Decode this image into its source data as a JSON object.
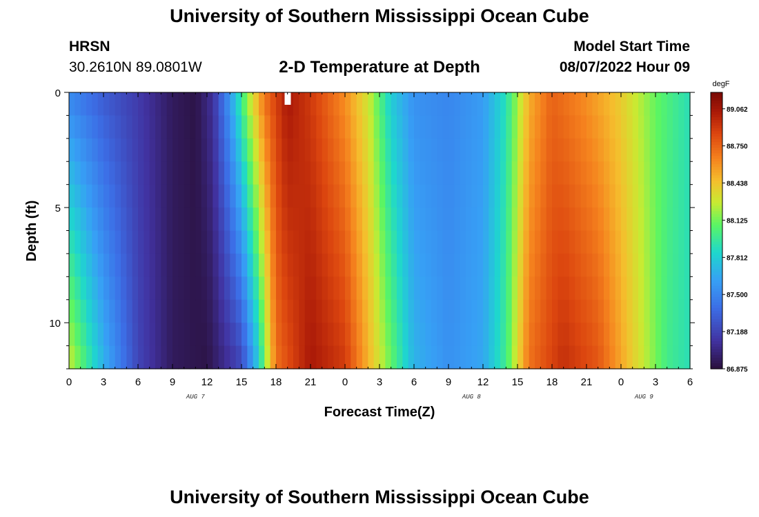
{
  "header": {
    "title": "University of Southern Mississippi Ocean Cube",
    "station": "HRSN",
    "coords": "30.2610N  89.0801W",
    "plot_title": "2-D Temperature at Depth",
    "model_start_label": "Model Start Time",
    "model_start_value": "08/07/2022 Hour 09"
  },
  "footer": {
    "title": "University of Southern Mississippi Ocean Cube"
  },
  "chart_data": {
    "type": "heatmap",
    "xlabel": "Forecast Time(Z)",
    "ylabel": "Depth (ft)",
    "x_tick_labels": [
      "0",
      "3",
      "6",
      "9",
      "12",
      "15",
      "18",
      "21",
      "0",
      "3",
      "6",
      "9",
      "12",
      "15",
      "18",
      "21",
      "0",
      "3",
      "6"
    ],
    "date_labels": [
      {
        "text": "AUG 7",
        "hour": 11
      },
      {
        "text": "AUG 8",
        "hour": 35
      },
      {
        "text": "AUG 9",
        "hour": 50
      }
    ],
    "x_range_hours": [
      0,
      54
    ],
    "y_range_ft": [
      0,
      12
    ],
    "y_tick_labels": [
      {
        "value": 0,
        "label": "0"
      },
      {
        "value": 5,
        "label": "5"
      },
      {
        "value": 10,
        "label": "10"
      }
    ],
    "colorbar": {
      "unit": "degF",
      "min": 86.875,
      "max": 89.2,
      "labels": [
        "89.062",
        "88.750",
        "88.438",
        "88.125",
        "87.812",
        "87.500",
        "87.188",
        "86.875"
      ]
    },
    "surface_temperature_keyframes": [
      {
        "hour": 0,
        "degF": 87.5
      },
      {
        "hour": 3,
        "degF": 87.3
      },
      {
        "hour": 6,
        "degF": 87.15
      },
      {
        "hour": 9,
        "degF": 86.95
      },
      {
        "hour": 11,
        "degF": 86.9
      },
      {
        "hour": 12.5,
        "degF": 87.1
      },
      {
        "hour": 14,
        "degF": 87.6
      },
      {
        "hour": 15.5,
        "degF": 88.2
      },
      {
        "hour": 17,
        "degF": 88.7
      },
      {
        "hour": 19,
        "degF": 89.05
      },
      {
        "hour": 21,
        "degF": 88.9
      },
      {
        "hour": 24,
        "degF": 88.6
      },
      {
        "hour": 26,
        "degF": 88.3
      },
      {
        "hour": 28,
        "degF": 87.8
      },
      {
        "hour": 30,
        "degF": 87.55
      },
      {
        "hour": 33,
        "degF": 87.5
      },
      {
        "hour": 36,
        "degF": 87.6
      },
      {
        "hour": 38,
        "degF": 87.9
      },
      {
        "hour": 40,
        "degF": 88.5
      },
      {
        "hour": 42,
        "degF": 88.75
      },
      {
        "hour": 45,
        "degF": 88.6
      },
      {
        "hour": 48,
        "degF": 88.4
      },
      {
        "hour": 51,
        "degF": 88.1
      },
      {
        "hour": 54,
        "degF": 87.9
      }
    ],
    "bottom_temperature_keyframes": [
      {
        "hour": 0,
        "degF": 88.3
      },
      {
        "hour": 3,
        "degF": 87.7
      },
      {
        "hour": 6,
        "degF": 87.2
      },
      {
        "hour": 9,
        "degF": 86.95
      },
      {
        "hour": 12,
        "degF": 86.9
      },
      {
        "hour": 15,
        "degF": 87.2
      },
      {
        "hour": 16.5,
        "degF": 87.8
      },
      {
        "hour": 18,
        "degF": 88.7
      },
      {
        "hour": 21,
        "degF": 89.05
      },
      {
        "hour": 24,
        "degF": 88.9
      },
      {
        "hour": 26,
        "degF": 88.5
      },
      {
        "hour": 28,
        "degF": 88.1
      },
      {
        "hour": 30,
        "degF": 87.7
      },
      {
        "hour": 33,
        "degF": 87.55
      },
      {
        "hour": 36,
        "degF": 87.65
      },
      {
        "hour": 38,
        "degF": 88.0
      },
      {
        "hour": 40,
        "degF": 88.7
      },
      {
        "hour": 43,
        "degF": 88.95
      },
      {
        "hour": 46,
        "degF": 88.8
      },
      {
        "hour": 49,
        "degF": 88.4
      },
      {
        "hour": 52,
        "degF": 88.0
      },
      {
        "hour": 54,
        "degF": 87.9
      }
    ]
  }
}
